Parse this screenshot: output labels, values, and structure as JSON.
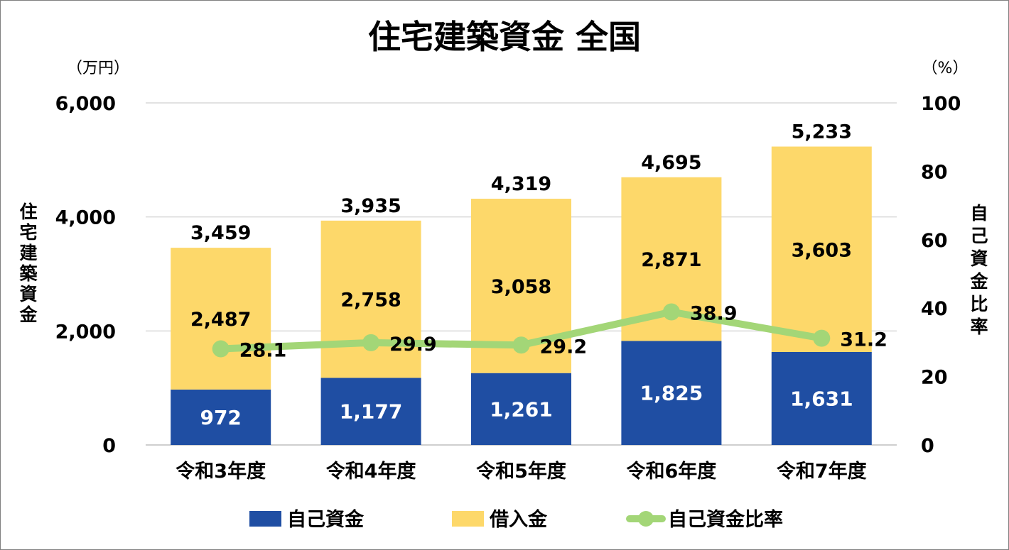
{
  "chart_data": {
    "type": "bar",
    "stacked": true,
    "title": "住宅建築資金 全国",
    "left_unit": "（万円）",
    "right_unit": "（%）",
    "ylabel_left": "住宅建築資金",
    "ylabel_right": "自己資金比率",
    "categories": [
      "令和3年度",
      "令和4年度",
      "令和5年度",
      "令和6年度",
      "令和7年度"
    ],
    "ylim_left": [
      0,
      6000
    ],
    "yticks_left": [
      "0",
      "2,000",
      "4,000",
      "6,000"
    ],
    "ylim_right": [
      0,
      100
    ],
    "yticks_right": [
      "0",
      "20",
      "40",
      "60",
      "80",
      "100"
    ],
    "grid": true,
    "legend_position": "bottom",
    "series": [
      {
        "name": "自己資金",
        "type": "bar",
        "color": "#1f4ea3",
        "values": [
          972,
          1177,
          1261,
          1825,
          1631
        ],
        "labels": [
          "972",
          "1,177",
          "1,261",
          "1,825",
          "1,631"
        ]
      },
      {
        "name": "借入金",
        "type": "bar",
        "color": "#fdd86a",
        "values": [
          2487,
          2758,
          3058,
          2871,
          3603
        ],
        "labels": [
          "2,487",
          "2,758",
          "3,058",
          "2,871",
          "3,603"
        ]
      },
      {
        "name": "自己資金比率",
        "type": "line",
        "axis": "right",
        "color": "#a3d677",
        "values": [
          28.1,
          29.9,
          29.2,
          38.9,
          31.2
        ],
        "labels": [
          "28.1",
          "29.9",
          "29.2",
          "38.9",
          "31.2"
        ]
      }
    ],
    "totals": [
      3459,
      3935,
      4319,
      4695,
      5233
    ],
    "total_labels": [
      "3,459",
      "3,935",
      "4,319",
      "4,695",
      "5,233"
    ]
  }
}
